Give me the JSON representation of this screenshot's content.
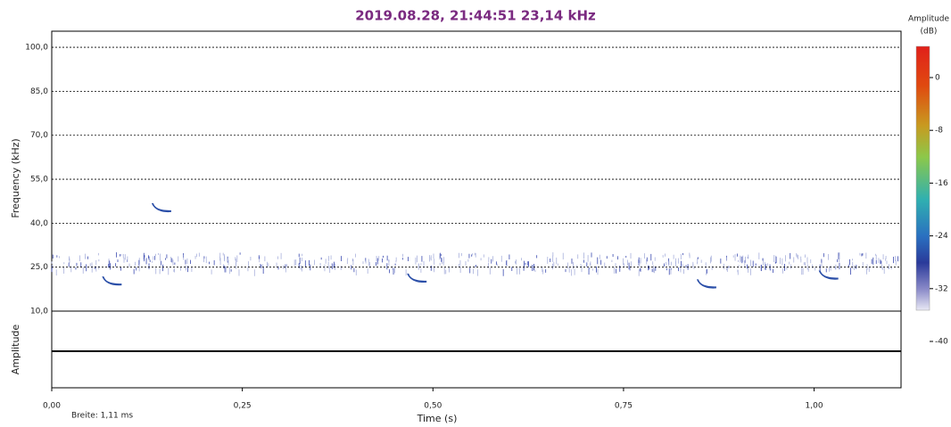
{
  "chart_data": {
    "type": "spectrogram",
    "title": "2019.08.28, 21:44:51 23,14 kHz",
    "ylabel": "Frequency (kHz)",
    "y2label": "Amplitude",
    "xlabel": "Time (s)",
    "note": "Breite: 1,11 ms",
    "xlim": [
      0,
      1.114
    ],
    "xticks": [
      {
        "value": 0,
        "label": "0,00"
      },
      {
        "value": 0.25,
        "label": "0,25"
      },
      {
        "value": 0.5,
        "label": "0,50"
      },
      {
        "value": 0.75,
        "label": "0,75"
      },
      {
        "value": 1,
        "label": "1,00"
      }
    ],
    "ylim": [
      10,
      105.5
    ],
    "yticks": [
      {
        "value": 10,
        "label": "10,0"
      },
      {
        "value": 25,
        "label": "25,0"
      },
      {
        "value": 40,
        "label": "40,0"
      },
      {
        "value": 55,
        "label": "55,0"
      },
      {
        "value": 70,
        "label": "70,0"
      },
      {
        "value": 85,
        "label": "85,0"
      },
      {
        "value": 100,
        "label": "100,0"
      }
    ],
    "grid": true,
    "colorbar": {
      "title": "Amplitude",
      "unit": "(dB)",
      "clim": [
        -40,
        5
      ],
      "ticks": [
        0,
        -8,
        -16,
        -24,
        -32,
        -40
      ]
    },
    "calls": {
      "x": [
        0.08,
        0.145,
        0.48,
        0.86,
        1.02
      ],
      "values": [
        20,
        45,
        21,
        19,
        22
      ],
      "color": "#2b4fa8"
    }
  }
}
